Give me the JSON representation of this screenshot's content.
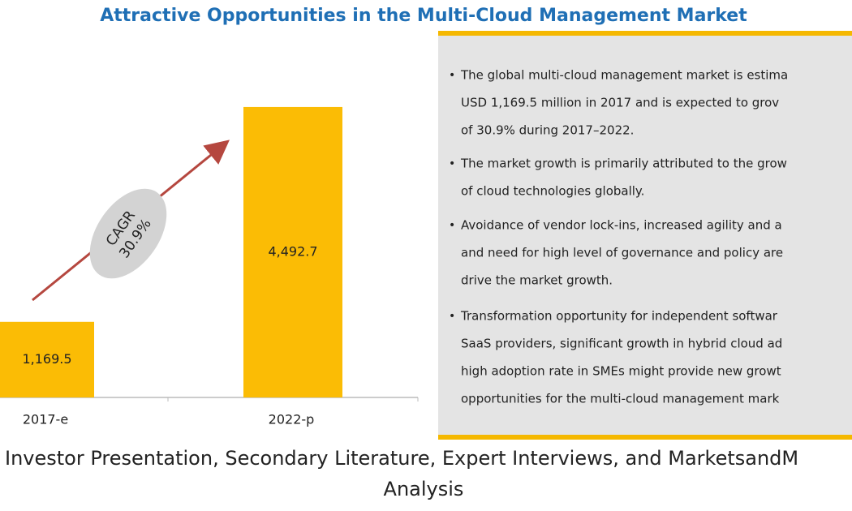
{
  "chart_data": {
    "type": "bar",
    "title": "Attractive Opportunities in the Multi-Cloud Management Market",
    "categories": [
      "2017-e",
      "2022-p"
    ],
    "values": [
      1169.5,
      4492.7
    ],
    "value_labels": [
      "1,169.5",
      "4,492.7"
    ],
    "color": "#fbbc05",
    "annotation": [
      "CAGR",
      "30.9%"
    ]
  },
  "panel": {
    "bullets": [
      [
        "The global multi-cloud management market is estima",
        "USD 1,169.5 million in 2017 and is expected to grov",
        "of 30.9% during 2017–2022."
      ],
      [
        "The market growth is primarily attributed to the grow",
        "of cloud technologies globally."
      ],
      [
        "Avoidance of vendor lock-ins, increased agility and a",
        "and need for high level of governance and policy are",
        "drive the market growth."
      ],
      [
        "Transformation opportunity for independent softwar",
        "SaaS providers, significant growth in hybrid cloud ad",
        "high adoption rate in SMEs might provide new growt",
        "opportunities for the multi-cloud management mark"
      ]
    ]
  },
  "source": [
    "Investor Presentation, Secondary Literature, Expert Interviews, and MarketsandM",
    "Analysis"
  ]
}
